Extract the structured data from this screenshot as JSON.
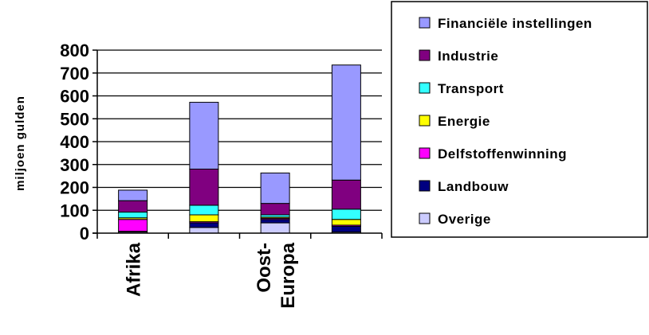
{
  "chart_data": {
    "type": "bar",
    "stacked": true,
    "categories": [
      "Afrika",
      "",
      "Oost-Europa",
      ""
    ],
    "category_lines": [
      [
        "Afrika"
      ],
      [],
      [
        "Oost-",
        "Europa"
      ],
      []
    ],
    "ylabel": "miljoen gulden",
    "ylim": [
      0,
      800
    ],
    "yticks": [
      "0",
      "100",
      "200",
      "300",
      "400",
      "500",
      "600",
      "700",
      "800"
    ],
    "grid": true,
    "legend_position": "right",
    "series": [
      {
        "name": "Overige",
        "color": "#ccccff",
        "values": [
          5,
          25,
          45,
          5
        ]
      },
      {
        "name": "Landbouw",
        "color": "#000080",
        "values": [
          3,
          20,
          15,
          25
        ]
      },
      {
        "name": "Delfstoffenwinning",
        "color": "#ff00ff",
        "values": [
          52,
          5,
          5,
          5
        ]
      },
      {
        "name": "Energie",
        "color": "#ffff00",
        "values": [
          7,
          30,
          5,
          25
        ]
      },
      {
        "name": "Transport",
        "color": "#33ffff",
        "values": [
          25,
          42,
          10,
          45
        ]
      },
      {
        "name": "Industrie",
        "color": "#800080",
        "values": [
          50,
          158,
          50,
          127
        ]
      },
      {
        "name": "Financiële instellingen",
        "color": "#9999ff",
        "values": [
          46,
          292,
          133,
          503
        ]
      }
    ]
  }
}
